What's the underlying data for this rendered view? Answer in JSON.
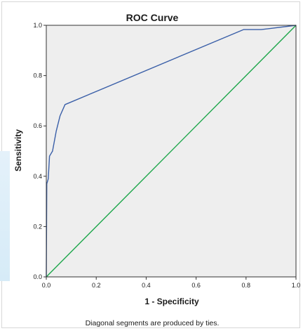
{
  "chart_data": {
    "type": "line",
    "title": "ROC Curve",
    "xlabel": "1 - Specificity",
    "ylabel": "Sensitivity",
    "xlim": [
      0.0,
      1.0
    ],
    "ylim": [
      0.0,
      1.0
    ],
    "xticks": [
      "0.0",
      "0.2",
      "0.4",
      "0.6",
      "0.8",
      "1.0"
    ],
    "yticks": [
      "0.0",
      "0.2",
      "0.4",
      "0.6",
      "0.8",
      "1.0"
    ],
    "grid": false,
    "footnote": "Diagonal segments are produced by ties.",
    "series": [
      {
        "color": "#3a5fa8",
        "points": [
          [
            0.0,
            0.0
          ],
          [
            0.002,
            0.37
          ],
          [
            0.008,
            0.39
          ],
          [
            0.013,
            0.48
          ],
          [
            0.025,
            0.5
          ],
          [
            0.04,
            0.58
          ],
          [
            0.055,
            0.64
          ],
          [
            0.075,
            0.685
          ],
          [
            0.79,
            0.983
          ],
          [
            0.86,
            0.983
          ],
          [
            1.0,
            1.0
          ]
        ]
      },
      {
        "color": "#1ca64a",
        "points": [
          [
            0.0,
            0.0
          ],
          [
            1.0,
            1.0
          ]
        ]
      }
    ],
    "plot_background": "#eeeeee"
  }
}
